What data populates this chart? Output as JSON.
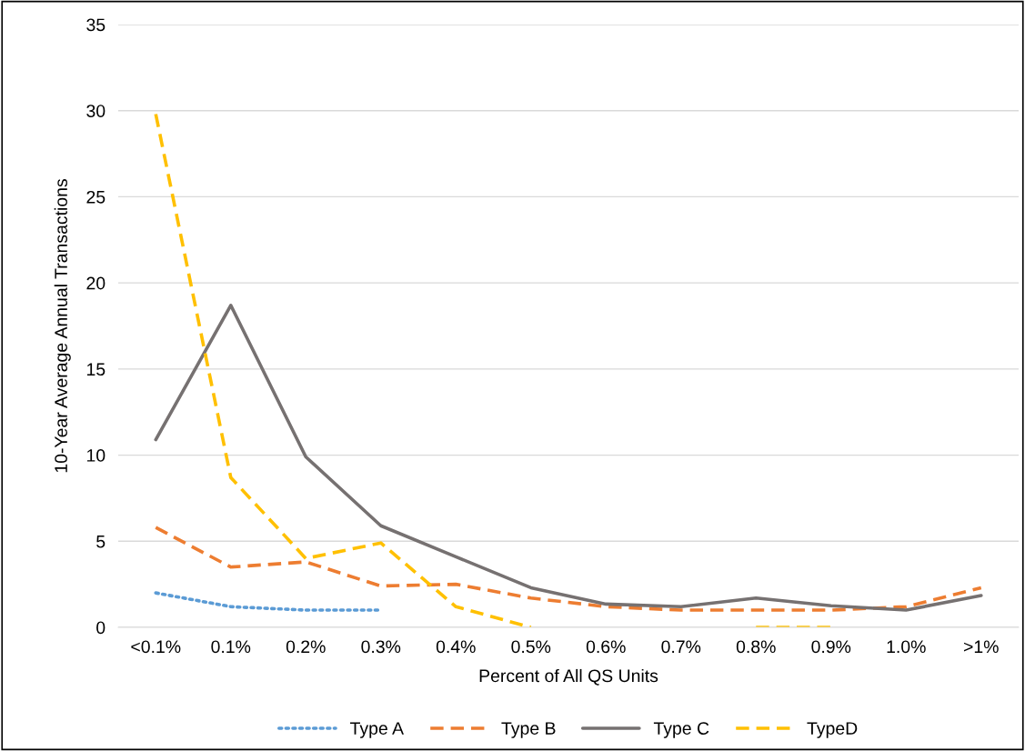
{
  "chart_data": {
    "type": "line",
    "xlabel": "Percent of All QS Units",
    "ylabel": "10-Year Average Annual Transactions",
    "categories": [
      "<0.1%",
      "0.1%",
      "0.2%",
      "0.3%",
      "0.4%",
      "0.5%",
      "0.6%",
      "0.7%",
      "0.8%",
      "0.9%",
      "1.0%",
      ">1%"
    ],
    "series": [
      {
        "name": "Type A",
        "color": "#5b9bd5",
        "line_style": "dotted",
        "values": [
          2.0,
          1.2,
          1.0,
          1.0,
          null,
          null,
          null,
          null,
          null,
          null,
          null,
          null
        ]
      },
      {
        "name": "Type B",
        "color": "#ed7d31",
        "line_style": "dashed",
        "values": [
          5.8,
          3.5,
          3.8,
          2.4,
          2.5,
          1.7,
          1.2,
          1.0,
          1.0,
          1.0,
          1.2,
          2.3
        ]
      },
      {
        "name": "Type C",
        "color": "#767171",
        "line_style": "solid",
        "values": [
          10.9,
          18.7,
          9.9,
          5.9,
          4.1,
          2.3,
          1.35,
          1.2,
          1.7,
          1.25,
          1.0,
          1.85
        ]
      },
      {
        "name": "TypeD",
        "color": "#ffc000",
        "line_style": "dashed",
        "values": [
          29.8,
          8.7,
          4.0,
          4.9,
          1.2,
          0.0,
          null,
          null,
          0.0,
          0.0,
          null,
          null
        ]
      }
    ],
    "ylim": [
      0,
      35
    ],
    "yticks": [
      0,
      5,
      10,
      15,
      20,
      25,
      30,
      35
    ],
    "grid": "y",
    "legend": "bottom",
    "marker": "none"
  }
}
